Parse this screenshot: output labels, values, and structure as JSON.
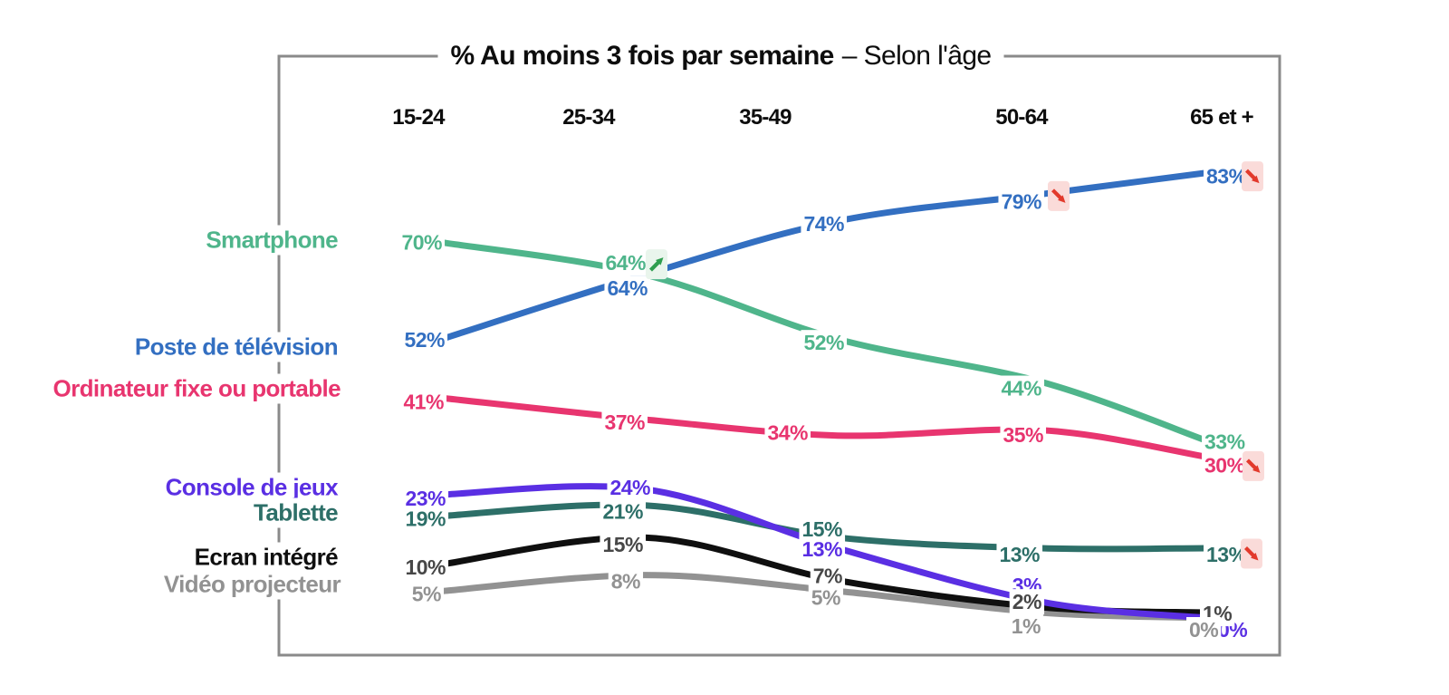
{
  "title": {
    "main_bold": "% Au moins 3 fois par semaine",
    "suffix": "– Selon l'âge"
  },
  "chart_data": {
    "type": "line",
    "title": "% Au moins 3 fois par semaine – Selon l'âge",
    "categories": [
      "15-24",
      "25-34",
      "35-49",
      "50-64",
      "65 et +"
    ],
    "unit": "%",
    "ylim": [
      0,
      100
    ],
    "grid": false,
    "legend_position": "left",
    "frame_color": "#8a8a8a",
    "series": [
      {
        "name": "Smartphone",
        "color": "#4fb58b",
        "values": [
          70,
          64,
          52,
          44,
          33
        ]
      },
      {
        "name": "Poste de télévision",
        "color": "#336fc1",
        "values": [
          52,
          64,
          74,
          79,
          83
        ]
      },
      {
        "name": "Ordinateur fixe ou portable",
        "color": "#e8356f",
        "values": [
          41,
          37,
          34,
          35,
          30
        ]
      },
      {
        "name": "Console de jeux",
        "color": "#5a2fe3",
        "values": [
          23,
          24,
          13,
          3,
          0
        ]
      },
      {
        "name": "Tablette",
        "color": "#2d6f68",
        "values": [
          19,
          21,
          15,
          13,
          13
        ]
      },
      {
        "name": "Ecran intégré",
        "color": "#0f0f0f",
        "value_label_color": "#474747",
        "values": [
          10,
          15,
          7,
          2,
          1
        ]
      },
      {
        "name": "Vidéo projecteur",
        "color": "#929292",
        "values": [
          5,
          8,
          5,
          1,
          0
        ]
      }
    ],
    "trend_arrows": [
      {
        "series": "Smartphone",
        "category": "25-34",
        "direction": "up"
      },
      {
        "series": "Poste de télévision",
        "category": "50-64",
        "direction": "down"
      },
      {
        "series": "Poste de télévision",
        "category": "65 et +",
        "direction": "down"
      },
      {
        "series": "Ordinateur fixe ou portable",
        "category": "65 et +",
        "direction": "down"
      },
      {
        "series": "Tablette",
        "category": "65 et +",
        "direction": "down"
      }
    ],
    "arrow_colors": {
      "up": "#2f9e4f",
      "up_bg": "#e9f5ec",
      "down": "#e23a2c",
      "down_bg": "#fadbd9"
    }
  }
}
